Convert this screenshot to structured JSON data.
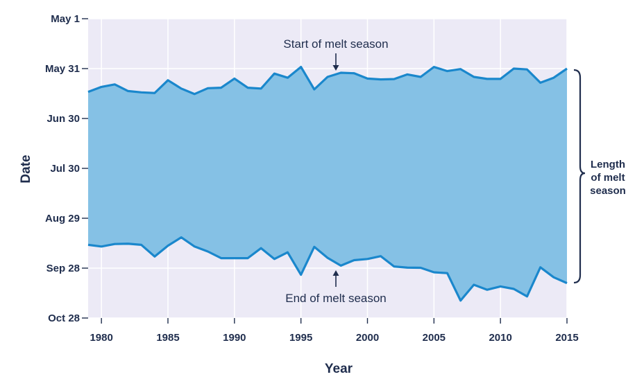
{
  "chart_data": {
    "type": "area",
    "xlabel": "Year",
    "ylabel": "Date",
    "xlim": [
      1979,
      2015
    ],
    "x_ticks": [
      1980,
      1985,
      1990,
      1995,
      2000,
      2005,
      2010,
      2015
    ],
    "y_ticks": [
      "May 1",
      "May 31",
      "Jun 30",
      "Jul 30",
      "Aug 29",
      "Sep 28",
      "Oct 28"
    ],
    "y_tick_days_after_may1": [
      0,
      30,
      60,
      90,
      120,
      150,
      180
    ],
    "ylim_days_after_may1": [
      0,
      180
    ],
    "y_axis_inverted": true,
    "x": [
      1979,
      1980,
      1981,
      1982,
      1983,
      1984,
      1985,
      1986,
      1987,
      1988,
      1989,
      1990,
      1991,
      1992,
      1993,
      1994,
      1995,
      1996,
      1997,
      1998,
      1999,
      2000,
      2001,
      2002,
      2003,
      2004,
      2005,
      2006,
      2007,
      2008,
      2009,
      2010,
      2011,
      2012,
      2013,
      2014,
      2015
    ],
    "series": [
      {
        "name": "Start of melt season",
        "values_days_after_may1": [
          44,
          41,
          39.5,
          43.5,
          44.3,
          44.7,
          37,
          42,
          45.3,
          41.8,
          41.5,
          36,
          41.5,
          42,
          33,
          35.5,
          29,
          42.5,
          35,
          32.5,
          32.8,
          36,
          36.5,
          36.3,
          33.5,
          35,
          29,
          31.5,
          30.3,
          35,
          36.2,
          36.2,
          30,
          30.5,
          38.5,
          35.5,
          30
        ]
      },
      {
        "name": "End of melt season",
        "values_days_after_may1": [
          136,
          137,
          135.5,
          135.3,
          136,
          143,
          136.5,
          131.5,
          137,
          140,
          144,
          144,
          144,
          138,
          144.5,
          140.5,
          154,
          137.2,
          143.8,
          148.5,
          145.2,
          144.5,
          142.8,
          149,
          149.7,
          149.8,
          152.5,
          153,
          169.5,
          160,
          163,
          161,
          162.5,
          167,
          149.5,
          155.5,
          159
        ]
      }
    ],
    "fill_color": "#85c1e5",
    "line_color": "#1a87cc",
    "plot_bg": "#eceaf6",
    "annotations": {
      "start_label": "Start of melt season",
      "end_label": "End of melt season",
      "brace_label": [
        "Length",
        "of melt",
        "season"
      ]
    }
  }
}
